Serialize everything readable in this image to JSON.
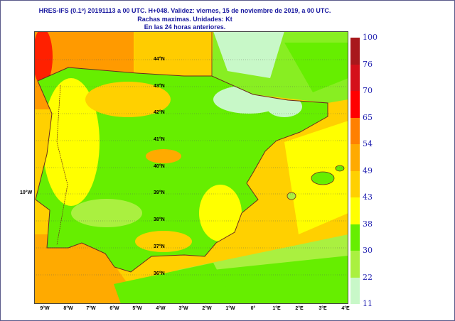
{
  "title": {
    "line1": "HRES-IFS (0.1º) 20191113 a 00 UTC.  H+048. Validez: viernes, 15 de noviembre de 2019,  a  00 UTC.",
    "line2": "Rachas maximas. Unidades: Kt",
    "line3": "En las 24 horas anteriores."
  },
  "lat_labels": [
    "44°N",
    "43°N",
    "42°N",
    "41°N",
    "40°N",
    "39°N",
    "38°N",
    "37°N",
    "36°N"
  ],
  "side_label": "10°W",
  "lon_labels": [
    "9°W",
    "8°W",
    "7°W",
    "6°W",
    "5°W",
    "4°W",
    "3°W",
    "2°W",
    "1°W",
    "0°",
    "1°E",
    "2°E",
    "3°E",
    "4°E"
  ],
  "legend": {
    "ticks": [
      "100",
      "76",
      "70",
      "65",
      "54",
      "49",
      "43",
      "38",
      "30",
      "22",
      "11"
    ],
    "colors": [
      "#a8181c",
      "#d4101a",
      "#ff0000",
      "#ff8000",
      "#ffaa00",
      "#ffd000",
      "#ffff00",
      "#66ee00",
      "#aaf040",
      "#c8f8c8"
    ]
  }
}
